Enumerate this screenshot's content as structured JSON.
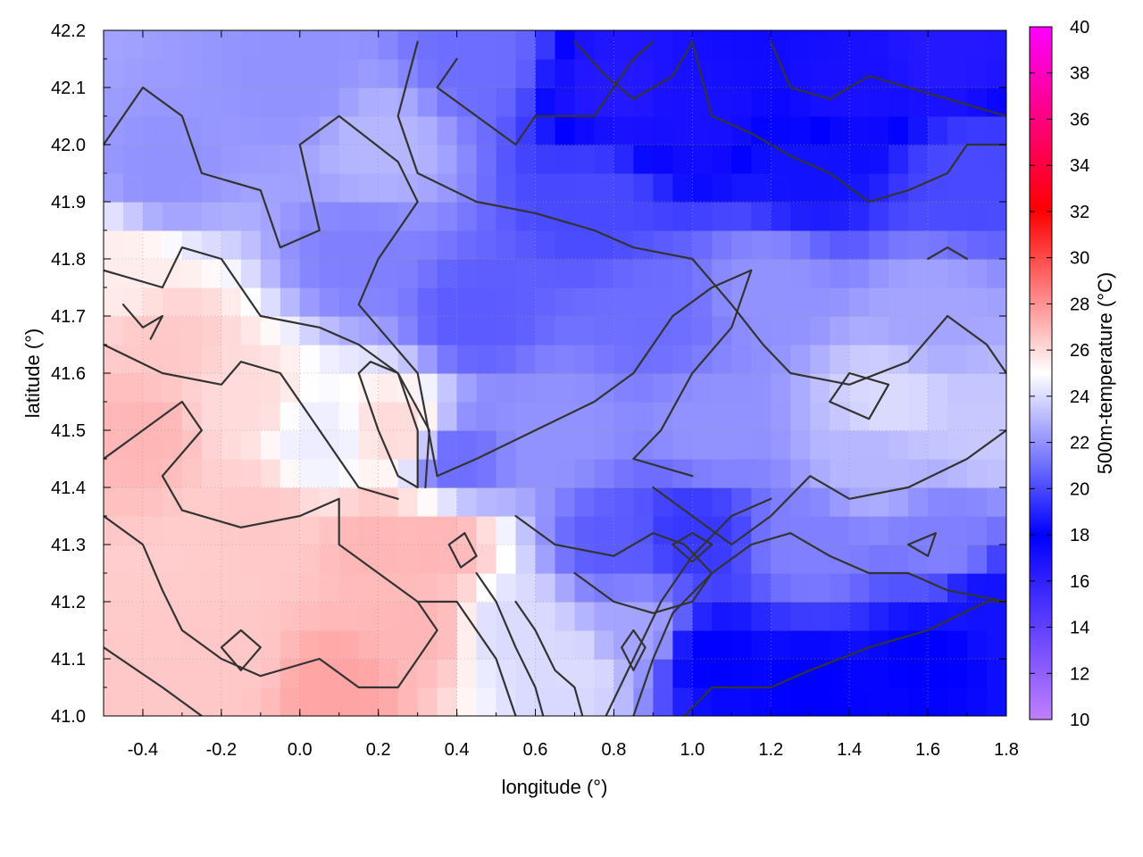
{
  "chart_data": {
    "type": "heatmap",
    "title": "",
    "xlabel": "longitude (°)",
    "ylabel": "latitude (°)",
    "colorbar_label": "500m-temperature (°C)",
    "xlim": [
      -0.5,
      1.8
    ],
    "ylim": [
      41.0,
      42.2
    ],
    "xticks": [
      "-0.4",
      "-0.2",
      "0.0",
      "0.2",
      "0.4",
      "0.6",
      "0.8",
      "1.0",
      "1.2",
      "1.4",
      "1.6",
      "1.8"
    ],
    "xtick_values": [
      -0.4,
      -0.2,
      0.0,
      0.2,
      0.4,
      0.6,
      0.8,
      1.0,
      1.2,
      1.4,
      1.6,
      1.8
    ],
    "yticks": [
      "41.0",
      "41.1",
      "41.2",
      "41.3",
      "41.4",
      "41.5",
      "41.6",
      "41.7",
      "41.8",
      "41.9",
      "42.0",
      "42.1",
      "42.2"
    ],
    "ytick_values": [
      41.0,
      41.1,
      41.2,
      41.3,
      41.4,
      41.5,
      41.6,
      41.7,
      41.8,
      41.9,
      42.0,
      42.1,
      42.2
    ],
    "colorbar_range": [
      10,
      40
    ],
    "colorbar_ticks": [
      "10",
      "12",
      "14",
      "16",
      "18",
      "20",
      "22",
      "24",
      "26",
      "28",
      "30",
      "32",
      "34",
      "36",
      "38",
      "40"
    ],
    "colorbar_tick_values": [
      10,
      12,
      14,
      16,
      18,
      20,
      22,
      24,
      26,
      28,
      30,
      32,
      34,
      36,
      38,
      40
    ],
    "palette_stops": [
      {
        "value": 10,
        "color": "#c080ff"
      },
      {
        "value": 18,
        "color": "#0000ff"
      },
      {
        "value": 25,
        "color": "#ffffff"
      },
      {
        "value": 32,
        "color": "#ff0000"
      },
      {
        "value": 40,
        "color": "#ff00ff"
      }
    ],
    "grid": true,
    "contour_color": "#333333",
    "field_anchors": [
      {
        "lon": -0.45,
        "lat": 41.05,
        "t": 26.5
      },
      {
        "lon": -0.2,
        "lat": 41.1,
        "t": 26.5
      },
      {
        "lon": 0.1,
        "lat": 41.05,
        "t": 27.5
      },
      {
        "lon": 0.3,
        "lat": 41.15,
        "t": 27
      },
      {
        "lon": 0.35,
        "lat": 41.3,
        "t": 27
      },
      {
        "lon": 0.2,
        "lat": 41.3,
        "t": 27
      },
      {
        "lon": -0.1,
        "lat": 41.35,
        "t": 26.5
      },
      {
        "lon": -0.4,
        "lat": 41.5,
        "t": 27
      },
      {
        "lon": -0.35,
        "lat": 41.65,
        "t": 26.5
      },
      {
        "lon": -0.15,
        "lat": 41.55,
        "t": 26
      },
      {
        "lon": 0.25,
        "lat": 41.5,
        "t": 26
      },
      {
        "lon": 0.05,
        "lat": 41.48,
        "t": 24.5
      },
      {
        "lon": -0.45,
        "lat": 41.78,
        "t": 25.5
      },
      {
        "lon": 0.55,
        "lat": 41.15,
        "t": 24
      },
      {
        "lon": 0.7,
        "lat": 41.08,
        "t": 24
      },
      {
        "lon": 0.4,
        "lat": 41.45,
        "t": 21
      },
      {
        "lon": 0.45,
        "lat": 41.7,
        "t": 20.5
      },
      {
        "lon": 0.15,
        "lat": 41.8,
        "t": 21.5
      },
      {
        "lon": -0.35,
        "lat": 41.95,
        "t": 22
      },
      {
        "lon": 0.0,
        "lat": 42.1,
        "t": 22
      },
      {
        "lon": 0.2,
        "lat": 42.0,
        "t": 23
      },
      {
        "lon": 0.45,
        "lat": 42.15,
        "t": 21
      },
      {
        "lon": 0.8,
        "lat": 42.1,
        "t": 16.5
      },
      {
        "lon": 1.0,
        "lat": 42.05,
        "t": 17
      },
      {
        "lon": 1.4,
        "lat": 42.1,
        "t": 17
      },
      {
        "lon": 1.65,
        "lat": 42.15,
        "t": 16.5
      },
      {
        "lon": 1.3,
        "lat": 41.95,
        "t": 18.5
      },
      {
        "lon": 1.7,
        "lat": 41.95,
        "t": 20
      },
      {
        "lon": 0.75,
        "lat": 41.9,
        "t": 20
      },
      {
        "lon": 0.9,
        "lat": 41.7,
        "t": 21
      },
      {
        "lon": 1.2,
        "lat": 41.75,
        "t": 22
      },
      {
        "lon": 1.6,
        "lat": 41.7,
        "t": 22.5
      },
      {
        "lon": 0.65,
        "lat": 41.5,
        "t": 22
      },
      {
        "lon": 1.05,
        "lat": 41.5,
        "t": 22
      },
      {
        "lon": 1.45,
        "lat": 41.45,
        "t": 23
      },
      {
        "lon": 1.75,
        "lat": 41.5,
        "t": 23.5
      },
      {
        "lon": 0.8,
        "lat": 41.3,
        "t": 20.5
      },
      {
        "lon": 1.0,
        "lat": 41.32,
        "t": 19.5
      },
      {
        "lon": 1.3,
        "lat": 41.3,
        "t": 21.5
      },
      {
        "lon": 1.65,
        "lat": 41.3,
        "t": 21.5
      },
      {
        "lon": 1.05,
        "lat": 41.1,
        "t": 18
      },
      {
        "lon": 1.3,
        "lat": 41.05,
        "t": 18
      },
      {
        "lon": 1.6,
        "lat": 41.1,
        "t": 18
      },
      {
        "lon": 1.75,
        "lat": 41.2,
        "t": 18.5
      },
      {
        "lon": 0.85,
        "lat": 41.15,
        "t": 22.5
      },
      {
        "lon": 1.5,
        "lat": 41.55,
        "t": 24
      }
    ],
    "contours": [
      [
        [
          -0.5,
          42.0
        ],
        [
          -0.4,
          42.1
        ],
        [
          -0.3,
          42.05
        ],
        [
          -0.25,
          41.95
        ],
        [
          -0.1,
          41.92
        ],
        [
          -0.05,
          41.82
        ],
        [
          0.05,
          41.85
        ],
        [
          0.0,
          42.0
        ],
        [
          0.1,
          42.05
        ],
        [
          0.25,
          41.97
        ],
        [
          0.3,
          41.9
        ],
        [
          0.2,
          41.8
        ],
        [
          0.15,
          41.72
        ],
        [
          0.3,
          41.6
        ],
        [
          0.35,
          41.42
        ]
      ],
      [
        [
          -0.5,
          41.78
        ],
        [
          -0.35,
          41.75
        ],
        [
          -0.3,
          41.82
        ],
        [
          -0.2,
          41.8
        ],
        [
          -0.1,
          41.7
        ],
        [
          0.05,
          41.68
        ],
        [
          0.15,
          41.65
        ],
        [
          0.25,
          41.6
        ],
        [
          0.33,
          41.5
        ],
        [
          0.32,
          41.4
        ]
      ],
      [
        [
          -0.45,
          41.72
        ],
        [
          -0.4,
          41.68
        ],
        [
          -0.35,
          41.7
        ],
        [
          -0.38,
          41.66
        ]
      ],
      [
        [
          -0.5,
          41.65
        ],
        [
          -0.35,
          41.6
        ],
        [
          -0.2,
          41.58
        ],
        [
          -0.15,
          41.62
        ],
        [
          -0.05,
          41.6
        ],
        [
          0.0,
          41.55
        ],
        [
          0.05,
          41.5
        ],
        [
          0.15,
          41.4
        ],
        [
          0.25,
          41.38
        ]
      ],
      [
        [
          -0.5,
          41.45
        ],
        [
          -0.4,
          41.5
        ],
        [
          -0.3,
          41.55
        ],
        [
          -0.25,
          41.5
        ],
        [
          -0.35,
          41.42
        ],
        [
          -0.3,
          41.36
        ],
        [
          -0.15,
          41.33
        ],
        [
          0.0,
          41.35
        ],
        [
          0.1,
          41.38
        ],
        [
          0.1,
          41.3
        ],
        [
          0.2,
          41.25
        ],
        [
          0.3,
          41.2
        ],
        [
          0.4,
          41.2
        ],
        [
          0.5,
          41.1
        ],
        [
          0.55,
          41.0
        ]
      ],
      [
        [
          -0.5,
          41.35
        ],
        [
          -0.4,
          41.3
        ],
        [
          -0.35,
          41.22
        ],
        [
          -0.3,
          41.15
        ],
        [
          -0.2,
          41.1
        ],
        [
          -0.1,
          41.07
        ],
        [
          0.05,
          41.1
        ],
        [
          0.15,
          41.05
        ],
        [
          0.25,
          41.05
        ],
        [
          0.3,
          41.1
        ],
        [
          0.35,
          41.15
        ],
        [
          0.3,
          41.2
        ]
      ],
      [
        [
          -0.5,
          41.12
        ],
        [
          -0.35,
          41.05
        ],
        [
          -0.25,
          41.0
        ]
      ],
      [
        [
          0.15,
          41.6
        ],
        [
          0.2,
          41.5
        ],
        [
          0.25,
          41.42
        ],
        [
          0.3,
          41.4
        ],
        [
          0.3,
          41.5
        ],
        [
          0.25,
          41.6
        ],
        [
          0.18,
          41.62
        ],
        [
          0.15,
          41.6
        ]
      ],
      [
        [
          0.38,
          41.3
        ],
        [
          0.42,
          41.32
        ],
        [
          0.45,
          41.28
        ],
        [
          0.41,
          41.26
        ],
        [
          0.38,
          41.3
        ]
      ],
      [
        [
          -0.2,
          41.12
        ],
        [
          -0.15,
          41.15
        ],
        [
          -0.1,
          41.12
        ],
        [
          -0.15,
          41.08
        ],
        [
          -0.2,
          41.12
        ]
      ],
      [
        [
          0.35,
          41.42
        ],
        [
          0.45,
          41.45
        ],
        [
          0.6,
          41.5
        ],
        [
          0.75,
          41.55
        ],
        [
          0.85,
          41.6
        ],
        [
          0.95,
          41.7
        ],
        [
          1.05,
          41.75
        ],
        [
          1.15,
          41.78
        ],
        [
          1.1,
          41.68
        ],
        [
          1.0,
          41.6
        ],
        [
          0.92,
          41.5
        ],
        [
          0.85,
          41.45
        ],
        [
          1.0,
          41.42
        ]
      ],
      [
        [
          0.3,
          42.18
        ],
        [
          0.25,
          42.05
        ],
        [
          0.3,
          41.95
        ],
        [
          0.45,
          41.9
        ],
        [
          0.6,
          41.88
        ],
        [
          0.75,
          41.85
        ],
        [
          0.85,
          41.82
        ],
        [
          1.0,
          41.8
        ],
        [
          1.1,
          41.72
        ],
        [
          1.18,
          41.65
        ],
        [
          1.25,
          41.6
        ],
        [
          1.4,
          41.58
        ],
        [
          1.55,
          41.62
        ],
        [
          1.65,
          41.7
        ],
        [
          1.75,
          41.65
        ],
        [
          1.8,
          41.6
        ]
      ],
      [
        [
          0.4,
          42.15
        ],
        [
          0.35,
          42.1
        ],
        [
          0.45,
          42.05
        ],
        [
          0.55,
          42.0
        ],
        [
          0.6,
          42.05
        ],
        [
          0.75,
          42.05
        ],
        [
          0.8,
          42.1
        ],
        [
          0.85,
          42.15
        ],
        [
          0.9,
          42.18
        ]
      ],
      [
        [
          0.7,
          42.18
        ],
        [
          0.78,
          42.12
        ],
        [
          0.85,
          42.08
        ],
        [
          0.95,
          42.12
        ],
        [
          1.0,
          42.18
        ]
      ],
      [
        [
          1.0,
          42.18
        ],
        [
          1.05,
          42.05
        ],
        [
          1.15,
          42.02
        ],
        [
          1.25,
          41.98
        ],
        [
          1.35,
          41.95
        ],
        [
          1.45,
          41.9
        ],
        [
          1.55,
          41.92
        ],
        [
          1.65,
          41.95
        ],
        [
          1.7,
          42.0
        ],
        [
          1.8,
          42.0
        ]
      ],
      [
        [
          1.2,
          42.18
        ],
        [
          1.25,
          42.1
        ],
        [
          1.35,
          42.08
        ],
        [
          1.45,
          42.12
        ],
        [
          1.55,
          42.1
        ],
        [
          1.65,
          42.08
        ],
        [
          1.8,
          42.05
        ]
      ],
      [
        [
          0.9,
          41.4
        ],
        [
          1.0,
          41.35
        ],
        [
          1.1,
          41.3
        ],
        [
          1.2,
          41.35
        ],
        [
          1.3,
          41.42
        ],
        [
          1.4,
          41.38
        ],
        [
          1.55,
          41.4
        ],
        [
          1.7,
          41.45
        ],
        [
          1.8,
          41.5
        ]
      ],
      [
        [
          0.55,
          41.35
        ],
        [
          0.65,
          41.3
        ],
        [
          0.8,
          41.28
        ],
        [
          0.9,
          41.32
        ],
        [
          0.98,
          41.3
        ],
        [
          1.05,
          41.25
        ],
        [
          1.0,
          41.2
        ],
        [
          0.9,
          41.18
        ],
        [
          0.8,
          41.2
        ],
        [
          0.7,
          41.25
        ]
      ],
      [
        [
          0.95,
          41.3
        ],
        [
          1.0,
          41.32
        ],
        [
          1.05,
          41.3
        ],
        [
          1.0,
          41.27
        ],
        [
          0.95,
          41.3
        ]
      ],
      [
        [
          0.85,
          41.0
        ],
        [
          0.9,
          41.1
        ],
        [
          0.95,
          41.18
        ],
        [
          1.05,
          41.25
        ],
        [
          1.15,
          41.3
        ],
        [
          1.25,
          41.32
        ],
        [
          1.35,
          41.28
        ],
        [
          1.45,
          41.25
        ],
        [
          1.55,
          41.25
        ],
        [
          1.65,
          41.22
        ],
        [
          1.8,
          41.2
        ]
      ],
      [
        [
          0.78,
          41.0
        ],
        [
          0.85,
          41.1
        ],
        [
          0.92,
          41.2
        ],
        [
          1.0,
          41.28
        ],
        [
          1.1,
          41.35
        ],
        [
          1.2,
          41.38
        ]
      ],
      [
        [
          0.98,
          41.0
        ],
        [
          1.05,
          41.05
        ],
        [
          1.2,
          41.05
        ],
        [
          1.3,
          41.08
        ],
        [
          1.45,
          41.12
        ],
        [
          1.6,
          41.15
        ],
        [
          1.75,
          41.2
        ],
        [
          1.8,
          41.2
        ]
      ],
      [
        [
          0.55,
          41.2
        ],
        [
          0.6,
          41.15
        ],
        [
          0.65,
          41.08
        ],
        [
          0.7,
          41.05
        ],
        [
          0.72,
          41.0
        ]
      ],
      [
        [
          0.45,
          41.25
        ],
        [
          0.5,
          41.2
        ],
        [
          0.55,
          41.12
        ],
        [
          0.6,
          41.05
        ],
        [
          0.62,
          41.0
        ]
      ],
      [
        [
          0.82,
          41.12
        ],
        [
          0.85,
          41.08
        ],
        [
          0.88,
          41.12
        ],
        [
          0.85,
          41.15
        ],
        [
          0.82,
          41.12
        ]
      ],
      [
        [
          1.35,
          41.55
        ],
        [
          1.4,
          41.6
        ],
        [
          1.5,
          41.58
        ],
        [
          1.45,
          41.52
        ],
        [
          1.35,
          41.55
        ]
      ],
      [
        [
          1.6,
          41.8
        ],
        [
          1.65,
          41.82
        ],
        [
          1.7,
          41.8
        ]
      ],
      [
        [
          1.55,
          41.3
        ],
        [
          1.6,
          41.28
        ],
        [
          1.62,
          41.32
        ],
        [
          1.55,
          41.3
        ]
      ]
    ]
  }
}
